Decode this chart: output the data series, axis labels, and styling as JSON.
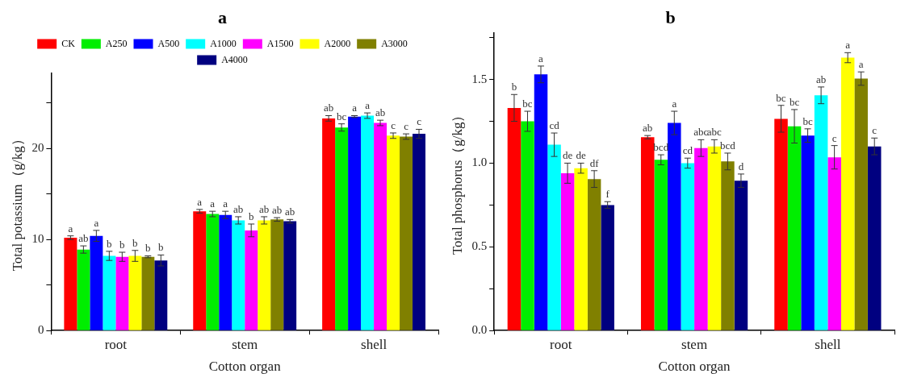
{
  "chart_data": [
    {
      "type": "bar",
      "title": "a",
      "xlabel": "Cotton organ",
      "ylabel": "Total potassium（g/kg）",
      "categories": [
        "root",
        "stem",
        "shell"
      ],
      "ylim": [
        0,
        28.3
      ],
      "yticks": [
        0,
        {
          "value": 5,
          "label": null
        },
        10,
        {
          "value": 15,
          "label": null
        },
        20,
        {
          "value": 25,
          "label": null
        }
      ],
      "legend": "top",
      "series": [
        {
          "name": "CK",
          "color": "#ff0000",
          "values": [
            10.2,
            13.1,
            23.3
          ],
          "errors": [
            0.2,
            0.2,
            0.3
          ],
          "value_labels": [
            "a",
            "a",
            "ab"
          ]
        },
        {
          "name": "A250",
          "color": "#00ee00",
          "values": [
            8.9,
            12.8,
            22.3
          ],
          "errors": [
            0.4,
            0.3,
            0.4
          ],
          "value_labels": [
            "ab",
            "a",
            "bc"
          ]
        },
        {
          "name": "A500",
          "color": "#0000ff",
          "values": [
            10.4,
            12.7,
            23.5
          ],
          "errors": [
            0.6,
            0.4,
            0.1
          ],
          "value_labels": [
            "a",
            "a",
            "a"
          ]
        },
        {
          "name": "A1000",
          "color": "#00ffff",
          "values": [
            8.2,
            12.1,
            23.6
          ],
          "errors": [
            0.5,
            0.4,
            0.3
          ],
          "value_labels": [
            "b",
            "ab",
            "a"
          ]
        },
        {
          "name": "A1500",
          "color": "#ff00ff",
          "values": [
            8.1,
            11.0,
            22.8
          ],
          "errors": [
            0.5,
            0.7,
            0.3
          ],
          "value_labels": [
            "b",
            "b",
            "ab"
          ]
        },
        {
          "name": "A2000",
          "color": "#ffff00",
          "values": [
            8.2,
            12.1,
            21.4
          ],
          "errors": [
            0.6,
            0.4,
            0.3
          ],
          "value_labels": [
            "b",
            "ab",
            "c"
          ]
        },
        {
          "name": "A3000",
          "color": "#808000",
          "values": [
            8.1,
            12.2,
            21.3
          ],
          "errors": [
            0.1,
            0.2,
            0.3
          ],
          "value_labels": [
            "b",
            "ab",
            "c"
          ]
        },
        {
          "name": "A4000",
          "color": "#000080",
          "values": [
            7.7,
            12.0,
            21.6
          ],
          "errors": [
            0.6,
            0.2,
            0.5
          ],
          "value_labels": [
            "b",
            "ab",
            "c"
          ]
        }
      ]
    },
    {
      "type": "bar",
      "title": "b",
      "xlabel": "Cotton organ",
      "ylabel": "Total phosphorus（g/kg）",
      "categories": [
        "root",
        "stem",
        "shell"
      ],
      "ylim": [
        0,
        1.78
      ],
      "yticks": [
        {
          "value": 0,
          "label": "0.0"
        },
        {
          "value": 0.25,
          "label": null
        },
        {
          "value": 0.5,
          "label": "0.5"
        },
        {
          "value": 0.75,
          "label": null
        },
        {
          "value": 1,
          "label": "1.0"
        },
        {
          "value": 1.25,
          "label": null
        },
        {
          "value": 1.5,
          "label": "1.5"
        },
        {
          "value": 1.75,
          "label": null
        }
      ],
      "series": [
        {
          "color": "#ff0000",
          "values": [
            1.33,
            1.155,
            1.265
          ],
          "errors": [
            0.08,
            0.01,
            0.08
          ],
          "value_labels": [
            "b",
            "ab",
            "bc"
          ]
        },
        {
          "color": "#00ee00",
          "values": [
            1.25,
            1.02,
            1.22
          ],
          "errors": [
            0.06,
            0.03,
            0.1
          ],
          "value_labels": [
            "bc",
            "bcd",
            "bc"
          ]
        },
        {
          "color": "#0000ff",
          "values": [
            1.53,
            1.24,
            1.165
          ],
          "errors": [
            0.05,
            0.07,
            0.04
          ],
          "value_labels": [
            "a",
            "a",
            "bc"
          ]
        },
        {
          "color": "#00ffff",
          "values": [
            1.11,
            1.0,
            1.405
          ],
          "errors": [
            0.07,
            0.03,
            0.05
          ],
          "value_labels": [
            "cd",
            "cd",
            "ab"
          ]
        },
        {
          "color": "#ff00ff",
          "values": [
            0.94,
            1.09,
            1.035
          ],
          "errors": [
            0.06,
            0.05,
            0.07
          ],
          "value_labels": [
            "de",
            "abc",
            "c"
          ]
        },
        {
          "color": "#ffff00",
          "values": [
            0.97,
            1.1,
            1.63
          ],
          "errors": [
            0.03,
            0.04,
            0.03
          ],
          "value_labels": [
            "de",
            "abc",
            "a"
          ]
        },
        {
          "color": "#808000",
          "values": [
            0.905,
            1.01,
            1.505
          ],
          "errors": [
            0.05,
            0.05,
            0.04
          ],
          "value_labels": [
            "df",
            "bcd",
            "a"
          ]
        },
        {
          "color": "#000080",
          "values": [
            0.75,
            0.895,
            1.1
          ],
          "errors": [
            0.02,
            0.04,
            0.05
          ],
          "value_labels": [
            "f",
            "d",
            "c"
          ]
        }
      ]
    }
  ]
}
